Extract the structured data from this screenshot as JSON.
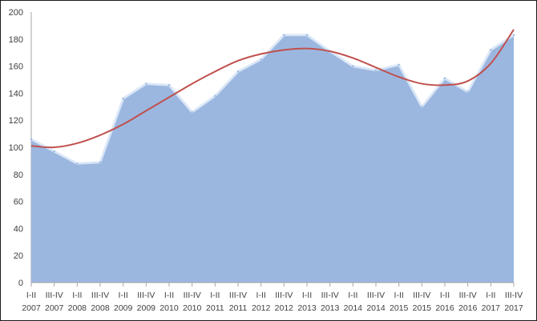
{
  "chart_data": {
    "type": "area",
    "title": "",
    "xlabel": "",
    "ylabel": "",
    "ylim": [
      0,
      200
    ],
    "yticks": [
      0,
      20,
      40,
      60,
      80,
      100,
      120,
      140,
      160,
      180,
      200
    ],
    "grid": false,
    "legend": "none",
    "categories": [
      {
        "period": "I-II",
        "year": "2007"
      },
      {
        "period": "III-IV",
        "year": "2007"
      },
      {
        "period": "I-II",
        "year": "2008"
      },
      {
        "period": "III-IV",
        "year": "2008"
      },
      {
        "period": "I-II",
        "year": "2009"
      },
      {
        "period": "III-IV",
        "year": "2009"
      },
      {
        "period": "I-II",
        "year": "2010"
      },
      {
        "period": "III-IV",
        "year": "2010"
      },
      {
        "period": "I-II",
        "year": "2011"
      },
      {
        "period": "III-IV",
        "year": "2011"
      },
      {
        "period": "I-II",
        "year": "2012"
      },
      {
        "period": "III-IV",
        "year": "2012"
      },
      {
        "period": "I-II",
        "year": "2013"
      },
      {
        "period": "III-IV",
        "year": "2013"
      },
      {
        "period": "I-II",
        "year": "2014"
      },
      {
        "period": "III-IV",
        "year": "2014"
      },
      {
        "period": "I-II",
        "year": "2015"
      },
      {
        "period": "III-IV",
        "year": "2015"
      },
      {
        "period": "I-II",
        "year": "2016"
      },
      {
        "period": "III-IV",
        "year": "2016"
      },
      {
        "period": "I-II",
        "year": "2017"
      },
      {
        "period": "III-IV",
        "year": "2017"
      }
    ],
    "series": [
      {
        "kind": "area",
        "values": [
          106,
          97,
          88,
          89,
          136,
          147,
          146,
          126,
          138,
          156,
          165,
          183,
          183,
          171,
          160,
          157,
          161,
          130,
          151,
          141,
          172,
          183
        ]
      },
      {
        "kind": "trendline",
        "values": [
          101,
          100,
          103,
          109,
          117,
          127,
          137,
          147,
          156,
          164,
          169,
          172,
          173,
          171,
          166,
          159,
          152,
          147,
          146,
          149,
          162,
          187
        ]
      }
    ],
    "colors": {
      "area_fill": "#9bb7e0",
      "area_highlight": "#dbe8f7",
      "trendline": "#c0504d",
      "axis": "#a6a6a6",
      "frame": "#1a1a1a"
    }
  }
}
